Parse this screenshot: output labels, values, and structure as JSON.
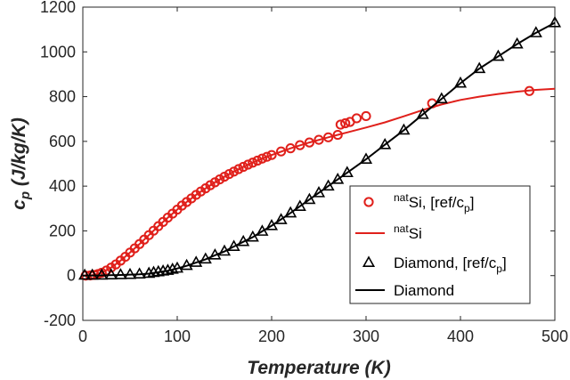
{
  "chart_data": {
    "type": "line",
    "xlabel": "Temperature (K)",
    "ylabel_main": "c",
    "ylabel_sub": "p",
    "ylabel_units": " (J/kg/K)",
    "xlim": [
      0,
      500
    ],
    "ylim": [
      -200,
      1200
    ],
    "x_ticks": [
      0,
      100,
      200,
      300,
      400,
      500
    ],
    "y_ticks": [
      -200,
      0,
      200,
      400,
      600,
      800,
      1000,
      1200
    ],
    "legend_position": "lower-right",
    "series": [
      {
        "name": "natSi, [ref/cp]",
        "marker": "circle",
        "color": "#e0201b",
        "x": [
          3,
          8,
          12,
          16,
          20,
          25,
          30,
          35,
          40,
          45,
          50,
          55,
          60,
          65,
          70,
          75,
          80,
          85,
          90,
          95,
          100,
          105,
          110,
          115,
          120,
          125,
          130,
          135,
          140,
          145,
          150,
          155,
          160,
          165,
          170,
          175,
          180,
          185,
          190,
          195,
          200,
          210,
          220,
          230,
          240,
          250,
          260,
          270,
          273,
          278,
          283,
          290,
          300,
          370,
          473
        ],
        "y": [
          0,
          1,
          3,
          7,
          13,
          23,
          36,
          50,
          67,
          84,
          103,
          122,
          141,
          161,
          181,
          201,
          221,
          240,
          259,
          277,
          295,
          313,
          329,
          345,
          361,
          376,
          390,
          404,
          417,
          430,
          442,
          454,
          465,
          476,
          486,
          496,
          505,
          514,
          523,
          531,
          539,
          555,
          569,
          583,
          595,
          607,
          618,
          629,
          675,
          681,
          687,
          703,
          713,
          770,
          825
        ]
      },
      {
        "name": "natSi",
        "marker": "none",
        "color": "#e0201b",
        "x": [
          0,
          10,
          20,
          30,
          40,
          50,
          60,
          70,
          80,
          90,
          100,
          110,
          120,
          130,
          140,
          150,
          160,
          170,
          180,
          190,
          200,
          220,
          240,
          260,
          280,
          300,
          320,
          340,
          360,
          380,
          400,
          420,
          440,
          460,
          480,
          500
        ],
        "y": [
          0,
          2,
          13,
          36,
          67,
          103,
          141,
          181,
          221,
          259,
          295,
          329,
          361,
          390,
          417,
          442,
          465,
          486,
          505,
          523,
          539,
          569,
          595,
          618,
          640,
          662,
          685,
          712,
          740,
          765,
          785,
          800,
          812,
          822,
          830,
          835
        ]
      },
      {
        "name": "Diamond, [ref/cp]",
        "marker": "triangle",
        "color": "#000000",
        "x": [
          2,
          10,
          20,
          30,
          40,
          50,
          60,
          70,
          75,
          80,
          85,
          90,
          95,
          100,
          110,
          120,
          130,
          140,
          150,
          160,
          170,
          180,
          190,
          200,
          210,
          220,
          230,
          240,
          250,
          260,
          270,
          280,
          300,
          320,
          340,
          360,
          380,
          400,
          420,
          440,
          460,
          480,
          500
        ],
        "y": [
          2,
          2,
          2,
          3,
          4,
          5,
          7,
          10,
          14,
          17,
          20,
          23,
          28,
          33,
          45,
          59,
          74,
          92,
          109,
          130,
          152,
          172,
          198,
          223,
          250,
          280,
          309,
          340,
          370,
          400,
          430,
          460,
          520,
          585,
          650,
          720,
          790,
          860,
          925,
          980,
          1035,
          1085,
          1130
        ]
      },
      {
        "name": "Diamond",
        "marker": "none",
        "color": "#000000",
        "x": [
          0,
          20,
          40,
          60,
          70,
          80,
          90,
          100,
          110,
          120,
          130,
          140,
          150,
          160,
          170,
          180,
          190,
          200,
          220,
          240,
          260,
          280,
          300,
          320,
          340,
          360,
          380,
          400,
          420,
          440,
          460,
          480,
          500
        ],
        "y": [
          0,
          1,
          3,
          6,
          9,
          15,
          22,
          32,
          44,
          58,
          73,
          91,
          108,
          130,
          151,
          172,
          198,
          223,
          280,
          340,
          400,
          460,
          520,
          585,
          650,
          720,
          790,
          860,
          925,
          980,
          1035,
          1085,
          1130
        ]
      }
    ],
    "legend_entries": [
      {
        "pre": "",
        "sup": "nat",
        "main": "Si, [ref/c",
        "sub": "p",
        "post": "]",
        "marker": "circle",
        "color": "#e0201b"
      },
      {
        "pre": "",
        "sup": "nat",
        "main": "Si",
        "sub": "",
        "post": "",
        "marker": "line",
        "color": "#e0201b"
      },
      {
        "pre": "",
        "sup": "",
        "main": "Diamond, [ref/c",
        "sub": "p",
        "post": "]",
        "marker": "triangle",
        "color": "#000000"
      },
      {
        "pre": "",
        "sup": "",
        "main": "Diamond",
        "sub": "",
        "post": "",
        "marker": "line",
        "color": "#000000"
      }
    ]
  }
}
